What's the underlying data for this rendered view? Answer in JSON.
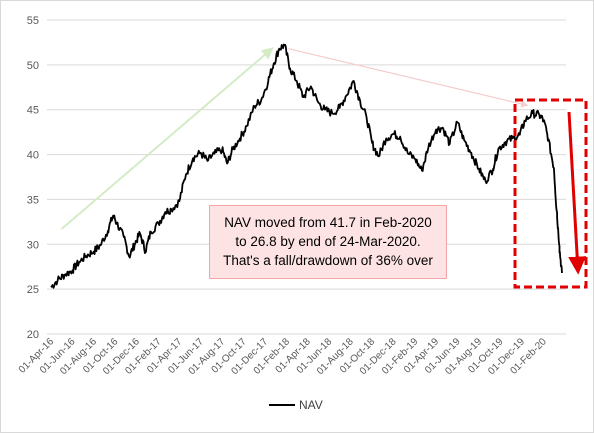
{
  "chart_data": {
    "type": "line",
    "title": "",
    "xlabel": "",
    "ylabel": "",
    "ylim": [
      20,
      55
    ],
    "yticks": [
      "20",
      "25",
      "30",
      "35",
      "40",
      "45",
      "50",
      "55"
    ],
    "xticks": [
      "01-Apr-16",
      "01-Jun-16",
      "01-Aug-16",
      "01-Oct-16",
      "01-Dec-16",
      "01-Feb-17",
      "01-Apr-17",
      "01-Jun-17",
      "01-Aug-17",
      "01-Oct-17",
      "01-Dec-17",
      "01-Feb-18",
      "01-Apr-18",
      "01-Jun-18",
      "01-Aug-18",
      "01-Oct-18",
      "01-Dec-18",
      "01-Feb-19",
      "01-Apr-19",
      "01-Jun-19",
      "01-Aug-19",
      "01-Oct-19",
      "01-Dec-19",
      "01-Feb-20"
    ],
    "grid": true,
    "legend_position": "bottom",
    "series": [
      {
        "name": "NAV",
        "color": "#000000",
        "points": [
          [
            "2016-04-01",
            25.2
          ],
          [
            "2016-04-20",
            26.0
          ],
          [
            "2016-05-10",
            26.6
          ],
          [
            "2016-06-01",
            27.1
          ],
          [
            "2016-06-20",
            28.0
          ],
          [
            "2016-07-10",
            28.7
          ],
          [
            "2016-08-01",
            29.2
          ],
          [
            "2016-08-20",
            29.9
          ],
          [
            "2016-09-10",
            31.5
          ],
          [
            "2016-09-25",
            33.2
          ],
          [
            "2016-10-05",
            32.4
          ],
          [
            "2016-10-25",
            30.8
          ],
          [
            "2016-11-10",
            28.6
          ],
          [
            "2016-11-25",
            30.0
          ],
          [
            "2016-12-10",
            31.2
          ],
          [
            "2016-12-26",
            29.2
          ],
          [
            "2017-01-10",
            31.4
          ],
          [
            "2017-02-01",
            32.3
          ],
          [
            "2017-02-20",
            33.6
          ],
          [
            "2017-03-10",
            33.9
          ],
          [
            "2017-04-01",
            34.8
          ],
          [
            "2017-04-20",
            37.8
          ],
          [
            "2017-05-10",
            39.6
          ],
          [
            "2017-06-01",
            40.2
          ],
          [
            "2017-06-20",
            39.3
          ],
          [
            "2017-07-10",
            40.1
          ],
          [
            "2017-08-01",
            40.6
          ],
          [
            "2017-08-15",
            39.0
          ],
          [
            "2017-09-01",
            40.6
          ],
          [
            "2017-09-20",
            41.8
          ],
          [
            "2017-10-10",
            43.2
          ],
          [
            "2017-11-01",
            45.4
          ],
          [
            "2017-11-20",
            46.1
          ],
          [
            "2017-12-10",
            48.2
          ],
          [
            "2017-12-25",
            50.1
          ],
          [
            "2018-01-10",
            51.8
          ],
          [
            "2018-01-25",
            52.2
          ],
          [
            "2018-02-10",
            49.6
          ],
          [
            "2018-03-01",
            48.2
          ],
          [
            "2018-03-20",
            46.4
          ],
          [
            "2018-04-10",
            47.6
          ],
          [
            "2018-05-01",
            45.8
          ],
          [
            "2018-05-20",
            45.0
          ],
          [
            "2018-06-10",
            44.6
          ],
          [
            "2018-07-01",
            45.2
          ],
          [
            "2018-07-20",
            46.6
          ],
          [
            "2018-08-10",
            48.2
          ],
          [
            "2018-08-28",
            46.0
          ],
          [
            "2018-09-15",
            44.2
          ],
          [
            "2018-10-01",
            41.3
          ],
          [
            "2018-10-20",
            39.8
          ],
          [
            "2018-11-10",
            41.8
          ],
          [
            "2018-12-01",
            42.3
          ],
          [
            "2018-12-20",
            42.0
          ],
          [
            "2019-01-10",
            40.2
          ],
          [
            "2019-02-01",
            39.5
          ],
          [
            "2019-02-20",
            38.2
          ],
          [
            "2019-03-10",
            40.8
          ],
          [
            "2019-04-01",
            42.8
          ],
          [
            "2019-04-20",
            43.0
          ],
          [
            "2019-05-10",
            41.2
          ],
          [
            "2019-06-01",
            43.6
          ],
          [
            "2019-06-20",
            41.6
          ],
          [
            "2019-07-10",
            40.2
          ],
          [
            "2019-08-01",
            38.4
          ],
          [
            "2019-08-20",
            37.0
          ],
          [
            "2019-09-10",
            38.4
          ],
          [
            "2019-09-25",
            40.6
          ],
          [
            "2019-10-15",
            41.4
          ],
          [
            "2019-11-05",
            41.8
          ],
          [
            "2019-11-25",
            42.2
          ],
          [
            "2019-12-10",
            43.8
          ],
          [
            "2020-01-01",
            44.6
          ],
          [
            "2020-01-20",
            44.4
          ],
          [
            "2020-02-01",
            43.8
          ],
          [
            "2020-02-15",
            41.7
          ],
          [
            "2020-03-01",
            38.5
          ],
          [
            "2020-03-10",
            33.5
          ],
          [
            "2020-03-17",
            29.8
          ],
          [
            "2020-03-24",
            26.8
          ]
        ]
      }
    ],
    "annotations": [
      "NAV moved from 41.7 in Feb-2020",
      "to 26.8 by end of 24-Mar-2020.",
      "That's a fall/drawdown of 36% over"
    ],
    "highlight_box_color": "#e00000",
    "arrow_color": "#e00000",
    "trend_arrow_up_color": "#d5ebc8",
    "trend_arrow_down_color": "#f6cccc"
  },
  "legend": {
    "label": "NAV"
  }
}
